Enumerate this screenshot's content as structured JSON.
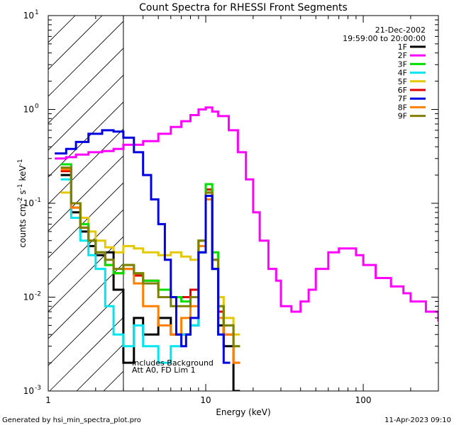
{
  "chart_data": {
    "type": "line",
    "title": "Count Spectra for RHESSI Front Segments",
    "xlabel": "Energy (keV)",
    "ylabel_base": "counts cm",
    "ylabel_parts": [
      "-2",
      " s",
      "-1",
      " keV",
      "-1"
    ],
    "xscale": "log",
    "yscale": "log",
    "xlim": [
      1,
      300
    ],
    "ylim": [
      0.001,
      10
    ],
    "x_ticks": [
      {
        "value": 1,
        "label": "1"
      },
      {
        "value": 10,
        "label": "10"
      },
      {
        "value": 100,
        "label": "100"
      }
    ],
    "y_ticks": [
      {
        "value": 0.001,
        "base": "10",
        "exp": "-3"
      },
      {
        "value": 0.01,
        "base": "10",
        "exp": "-2"
      },
      {
        "value": 0.1,
        "base": "10",
        "exp": "-1"
      },
      {
        "value": 1,
        "base": "10",
        "exp": "0"
      },
      {
        "value": 10,
        "base": "10",
        "exp": "1"
      }
    ],
    "hatched_region_keV": [
      1,
      3
    ],
    "date": "21-Dec-2002",
    "time_range": "19:59:00 to 20:00:00",
    "annotations": [
      "Includes Background",
      "Att A0, FD Lim 1"
    ],
    "legend_position": "top-right",
    "series": [
      {
        "name": "1F",
        "color": "#000000",
        "x": [
          1.2,
          1.4,
          1.6,
          1.8,
          2.0,
          2.3,
          2.6,
          3.0,
          3.5,
          4.0,
          5.0,
          6.0,
          7.0,
          8.0,
          9.0,
          10.0,
          11.0,
          12.0,
          13.0,
          15.0
        ],
        "y": [
          0.2,
          0.08,
          0.05,
          0.035,
          0.028,
          0.03,
          0.012,
          0.002,
          0.006,
          0.004,
          0.006,
          0.004,
          0.004,
          0.005,
          0.03,
          0.13,
          0.02,
          0.005,
          0.003,
          0.001
        ]
      },
      {
        "name": "2F",
        "color": "#ff00ff",
        "x": [
          1.1,
          1.3,
          1.5,
          1.8,
          2.2,
          2.6,
          3.0,
          4.0,
          5.0,
          6.0,
          7.0,
          8.0,
          9.0,
          10.0,
          11.0,
          12.0,
          14.0,
          16.0,
          18.0,
          20.0,
          22.0,
          25.0,
          28.0,
          30.0,
          35.0,
          40.0,
          45.0,
          50.0,
          60.0,
          70.0,
          80.0,
          90.0,
          100.0,
          120.0,
          150.0,
          180.0,
          200.0,
          250.0,
          300.0
        ],
        "y": [
          0.3,
          0.31,
          0.33,
          0.35,
          0.36,
          0.38,
          0.42,
          0.46,
          0.55,
          0.65,
          0.75,
          0.87,
          1.0,
          1.05,
          0.95,
          0.85,
          0.6,
          0.35,
          0.18,
          0.08,
          0.04,
          0.02,
          0.015,
          0.008,
          0.007,
          0.009,
          0.012,
          0.02,
          0.03,
          0.033,
          0.033,
          0.028,
          0.022,
          0.016,
          0.013,
          0.011,
          0.009,
          0.007,
          0.0055
        ]
      },
      {
        "name": "3F",
        "color": "#00e000",
        "x": [
          1.2,
          1.4,
          1.6,
          1.8,
          2.0,
          2.3,
          2.6,
          3.0,
          3.5,
          4.0,
          5.0,
          6.0,
          7.0,
          8.0,
          9.0,
          10.0,
          11.0,
          12.0,
          13.0,
          15.0
        ],
        "y": [
          0.26,
          0.1,
          0.06,
          0.04,
          0.03,
          0.022,
          0.018,
          0.022,
          0.018,
          0.015,
          0.012,
          0.01,
          0.009,
          0.01,
          0.04,
          0.16,
          0.03,
          0.008,
          0.005,
          0.003
        ]
      },
      {
        "name": "4F",
        "color": "#00e5ee",
        "x": [
          1.2,
          1.4,
          1.6,
          1.8,
          2.0,
          2.3,
          2.6,
          3.0,
          3.5,
          4.0,
          5.0,
          6.0,
          7.0,
          8.0,
          9.0,
          10.0,
          11.0,
          12.0
        ],
        "y": [
          0.18,
          0.07,
          0.04,
          0.028,
          0.02,
          0.008,
          0.004,
          0.003,
          0.005,
          0.003,
          0.002,
          0.003,
          0.004,
          0.005,
          0.03,
          0.12,
          0.02,
          0.004
        ]
      },
      {
        "name": "5F",
        "color": "#e6c800",
        "x": [
          1.2,
          1.4,
          1.6,
          1.8,
          2.0,
          2.3,
          2.6,
          3.0,
          3.5,
          4.0,
          5.0,
          6.0,
          7.0,
          8.0,
          9.0,
          10.0,
          11.0,
          12.0,
          13.0,
          15.0
        ],
        "y": [
          0.13,
          0.1,
          0.07,
          0.05,
          0.04,
          0.034,
          0.03,
          0.035,
          0.033,
          0.03,
          0.028,
          0.03,
          0.027,
          0.025,
          0.04,
          0.14,
          0.03,
          0.01,
          0.006,
          0.004
        ]
      },
      {
        "name": "6F",
        "color": "#e00000",
        "x": [
          1.2,
          1.4,
          1.6,
          1.8,
          2.0,
          2.3,
          2.6,
          3.0,
          3.5,
          4.0,
          5.0,
          6.0,
          7.0,
          8.0,
          9.0,
          10.0,
          11.0,
          12.0,
          13.0,
          15.0
        ],
        "y": [
          0.22,
          0.09,
          0.055,
          0.04,
          0.03,
          0.022,
          0.018,
          0.02,
          0.017,
          0.015,
          0.012,
          0.01,
          0.01,
          0.012,
          0.04,
          0.14,
          0.025,
          0.007,
          0.004,
          0.002
        ]
      },
      {
        "name": "7F",
        "color": "#0000e0",
        "x": [
          1.1,
          1.3,
          1.5,
          1.8,
          2.2,
          2.6,
          3.0,
          3.5,
          4.0,
          4.5,
          5.0,
          5.5,
          6.0,
          6.5,
          7.0,
          7.5,
          8.0,
          9.0,
          10.0,
          11.0,
          12.0,
          13.0
        ],
        "y": [
          0.34,
          0.38,
          0.45,
          0.55,
          0.6,
          0.58,
          0.5,
          0.35,
          0.2,
          0.11,
          0.06,
          0.025,
          0.01,
          0.004,
          0.003,
          0.004,
          0.006,
          0.03,
          0.12,
          0.02,
          0.004,
          0.002
        ]
      },
      {
        "name": "8F",
        "color": "#ff8000",
        "x": [
          1.2,
          1.4,
          1.6,
          1.8,
          2.0,
          2.3,
          2.6,
          3.0,
          3.5,
          4.0,
          5.0,
          6.0,
          7.0,
          8.0,
          9.0,
          10.0,
          11.0,
          12.0,
          13.0,
          15.0
        ],
        "y": [
          0.23,
          0.09,
          0.055,
          0.04,
          0.03,
          0.022,
          0.018,
          0.02,
          0.014,
          0.008,
          0.005,
          0.004,
          0.006,
          0.008,
          0.035,
          0.11,
          0.02,
          0.006,
          0.004,
          0.002
        ]
      },
      {
        "name": "9F",
        "color": "#808000",
        "x": [
          1.2,
          1.4,
          1.6,
          1.8,
          2.0,
          2.3,
          2.6,
          3.0,
          3.5,
          4.0,
          5.0,
          6.0,
          7.0,
          8.0,
          9.0,
          10.0,
          11.0,
          12.0,
          13.0,
          15.0
        ],
        "y": [
          0.24,
          0.1,
          0.055,
          0.04,
          0.03,
          0.025,
          0.02,
          0.022,
          0.018,
          0.014,
          0.01,
          0.008,
          0.008,
          0.01,
          0.04,
          0.13,
          0.025,
          0.008,
          0.005,
          0.003
        ]
      }
    ]
  },
  "footer": {
    "generated_by": "Generated by hsi_min_spectra_plot.pro",
    "timestamp": "11-Apr-2023 09:10"
  }
}
